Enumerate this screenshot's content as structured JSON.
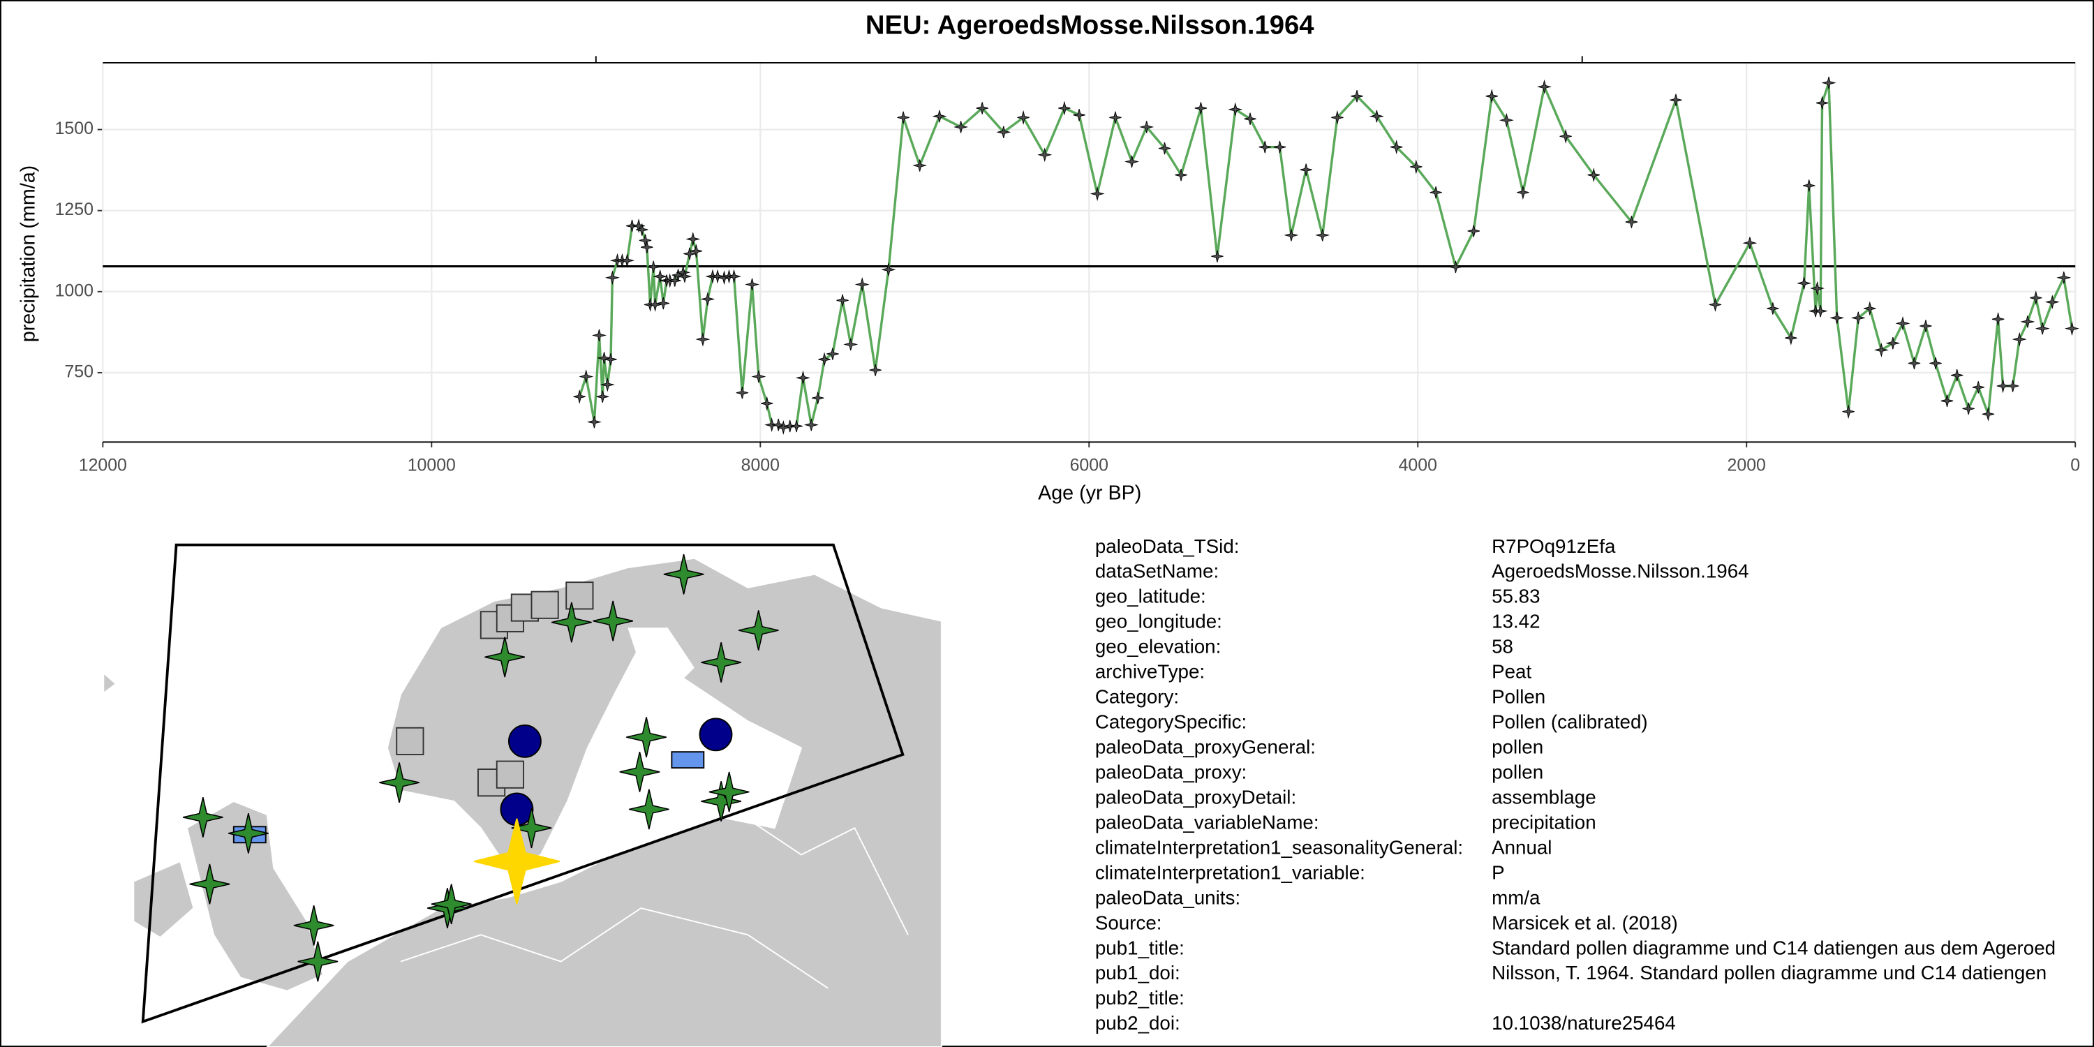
{
  "chart_data": {
    "type": "line",
    "title": "NEU: AgeroedsMosse.Nilsson.1964",
    "xlabel": "Age (yr BP)",
    "ylabel": "precipitation (mm/a)",
    "color": "#5aa95a",
    "marker_color": "#4d4d4d",
    "xlim": [
      12000,
      0
    ],
    "ylim": [
      536,
      1706
    ],
    "xticks": [
      12000,
      10000,
      8000,
      6000,
      4000,
      2000,
      0
    ],
    "x2ticks": [
      9000,
      3000
    ],
    "yticks": [
      750,
      1000,
      1250,
      1500
    ],
    "hline": 1078,
    "grid": true,
    "x": [
      9100,
      9060,
      9010,
      8980,
      8960,
      8950,
      8930,
      8910,
      8900,
      8870,
      8840,
      8810,
      8780,
      8740,
      8720,
      8700,
      8690,
      8670,
      8650,
      8640,
      8610,
      8590,
      8570,
      8550,
      8520,
      8500,
      8470,
      8460,
      8430,
      8410,
      8390,
      8350,
      8320,
      8290,
      8260,
      8220,
      8190,
      8160,
      8110,
      8050,
      8010,
      7960,
      7930,
      7890,
      7860,
      7820,
      7780,
      7740,
      7690,
      7650,
      7610,
      7560,
      7500,
      7450,
      7380,
      7300,
      7220,
      7130,
      7030,
      6910,
      6780,
      6650,
      6520,
      6400,
      6270,
      6150,
      6060,
      5950,
      5840,
      5740,
      5650,
      5540,
      5440,
      5320,
      5220,
      5110,
      5020,
      4930,
      4840,
      4770,
      4680,
      4580,
      4490,
      4370,
      4250,
      4130,
      4010,
      3890,
      3770,
      3660,
      3550,
      3460,
      3360,
      3230,
      3100,
      2930,
      2700,
      2430,
      2190,
      1980,
      1840,
      1730,
      1650,
      1620,
      1580,
      1570,
      1550,
      1540,
      1500,
      1450,
      1380,
      1320,
      1250,
      1180,
      1110,
      1050,
      980,
      910,
      850,
      780,
      720,
      650,
      590,
      530,
      470,
      440,
      380,
      340,
      290,
      240,
      200,
      140,
      70,
      20
    ],
    "values": [
      676,
      738,
      598,
      865,
      676,
      795,
      713,
      791,
      1043,
      1096,
      1096,
      1096,
      1203,
      1203,
      1191,
      1158,
      1137,
      960,
      1076,
      960,
      1047,
      964,
      1034,
      1034,
      1034,
      1051,
      1059,
      1047,
      1117,
      1162,
      1125,
      853,
      977,
      1047,
      1047,
      1043,
      1047,
      1047,
      688,
      1022,
      738,
      655,
      589,
      589,
      581,
      585,
      585,
      734,
      589,
      672,
      791,
      808,
      973,
      837,
      1022,
      758,
      1068,
      1537,
      1389,
      1541,
      1508,
      1566,
      1492,
      1537,
      1422,
      1566,
      1545,
      1302,
      1537,
      1401,
      1508,
      1442,
      1360,
      1566,
      1109,
      1562,
      1533,
      1446,
      1446,
      1174,
      1376,
      1174,
      1537,
      1603,
      1541,
      1446,
      1385,
      1306,
      1076,
      1187,
      1603,
      1529,
      1306,
      1632,
      1479,
      1360,
      1215,
      1591,
      960,
      1150,
      948,
      857,
      1026,
      1327,
      940,
      1010,
      940,
      1582,
      1644,
      919,
      630,
      919,
      948,
      820,
      841,
      902,
      779,
      894,
      779,
      663,
      742,
      639,
      705,
      622,
      915,
      709,
      709,
      853,
      907,
      981,
      886,
      968,
      1043,
      886
    ]
  },
  "info": {
    "rows": [
      {
        "key": "paleoData_TSid:",
        "value": "R7POq91zEfa"
      },
      {
        "key": "dataSetName:",
        "value": "AgeroedsMosse.Nilsson.1964"
      },
      {
        "key": "geo_latitude:",
        "value": "55.83"
      },
      {
        "key": "geo_longitude:",
        "value": "13.42"
      },
      {
        "key": "geo_elevation:",
        "value": "58"
      },
      {
        "key": "archiveType:",
        "value": "Peat"
      },
      {
        "key": "Category:",
        "value": "Pollen"
      },
      {
        "key": "CategorySpecific:",
        "value": "Pollen (calibrated)"
      },
      {
        "key": "paleoData_proxyGeneral:",
        "value": "pollen"
      },
      {
        "key": "paleoData_proxy:",
        "value": "pollen"
      },
      {
        "key": "paleoData_proxyDetail:",
        "value": "assemblage"
      },
      {
        "key": "paleoData_variableName:",
        "value": "precipitation"
      },
      {
        "key": "climateInterpretation1_seasonalityGeneral:",
        "value": "Annual"
      },
      {
        "key": "climateInterpretation1_variable:",
        "value": "P"
      },
      {
        "key": "paleoData_units:",
        "value": "mm/a"
      },
      {
        "key": "Source:",
        "value": "Marsicek et al. (2018)"
      },
      {
        "key": "pub1_title:",
        "value": "Standard pollen diagramme und C14 datiengen aus dem Ageroed"
      },
      {
        "key": "pub1_doi:",
        "value": "Nilsson, T. 1964. Standard pollen diagramme und C14 datiengen"
      },
      {
        "key": "pub2_title:"
      },
      {
        "key": "pub2_doi:",
        "value": "10.1038/nature25464"
      }
    ]
  }
}
